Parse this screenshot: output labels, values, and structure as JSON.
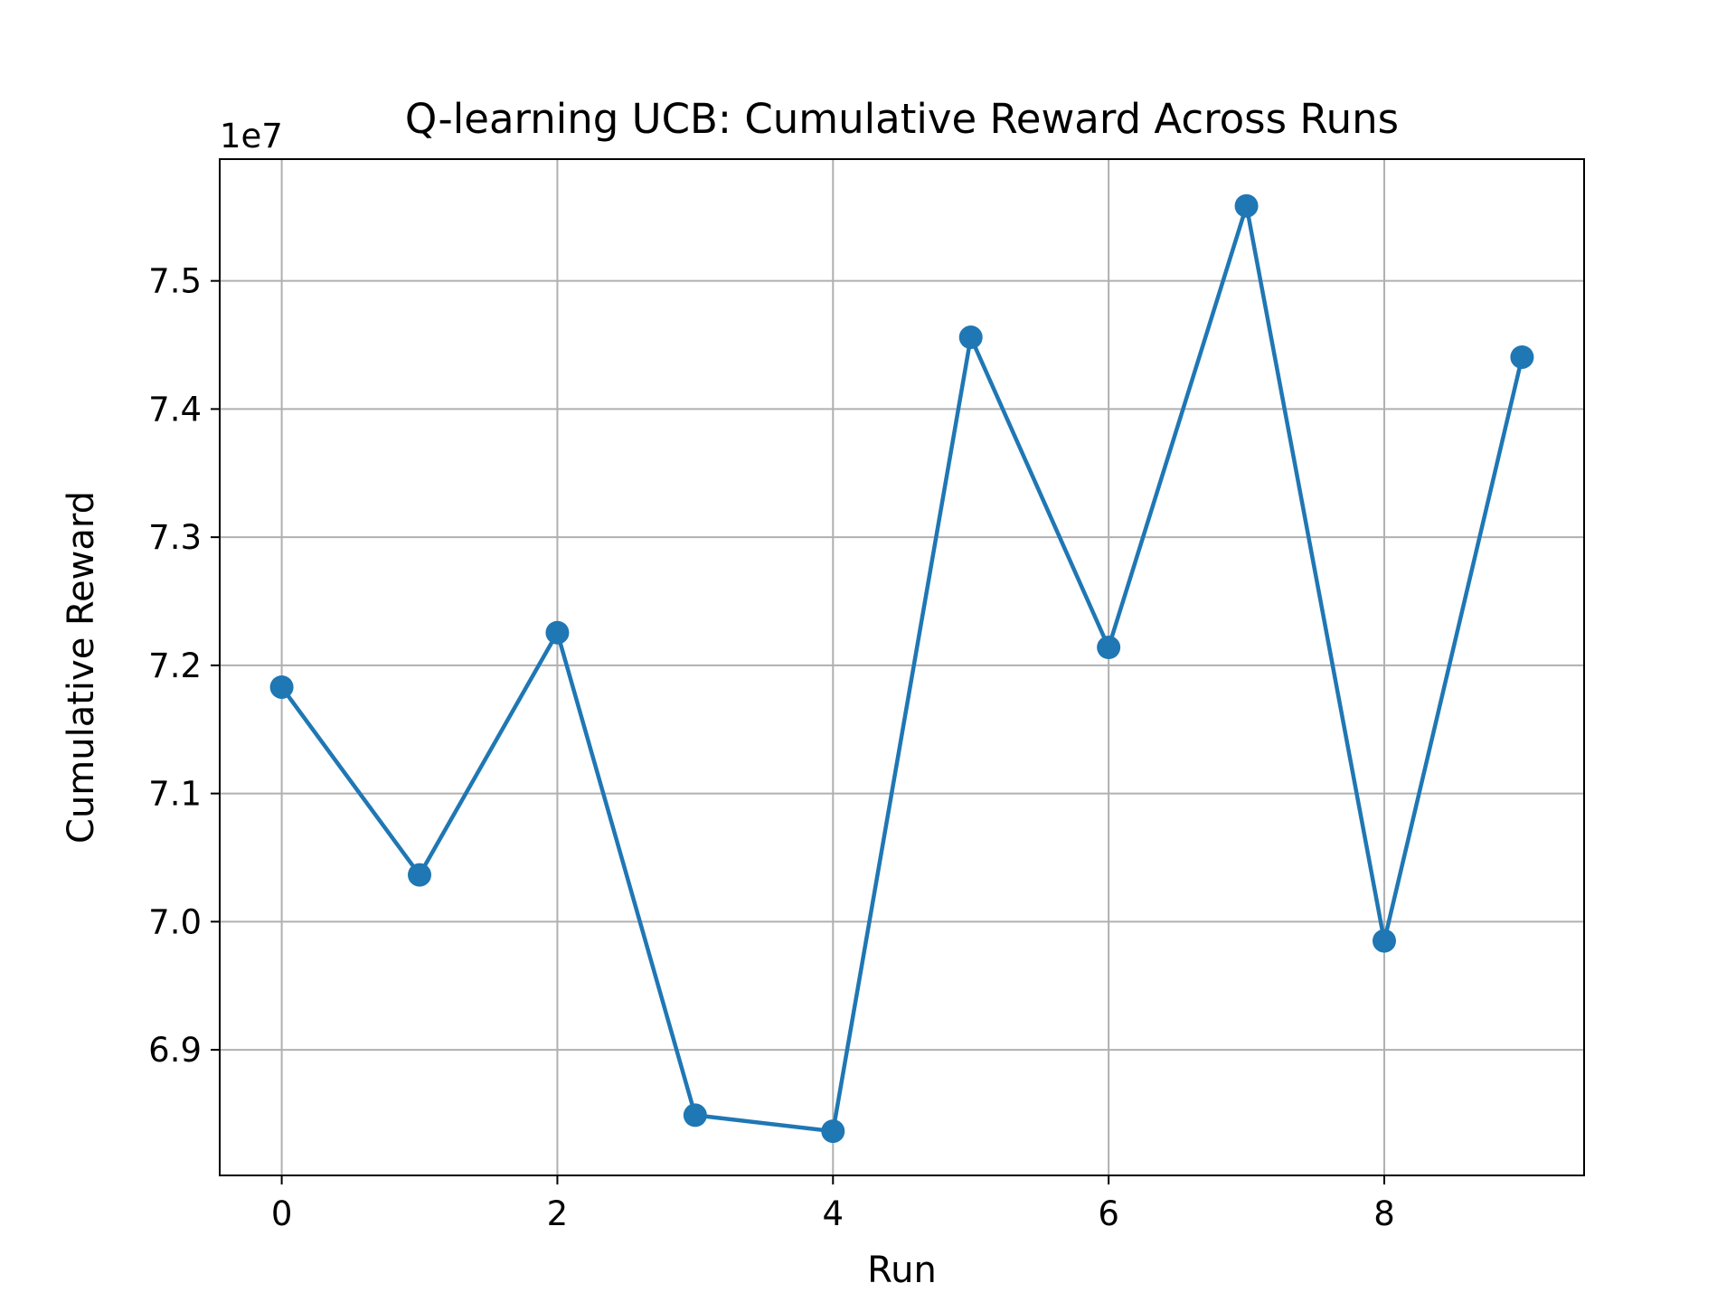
{
  "chart_data": {
    "type": "line",
    "title": "Q-learning UCB: Cumulative Reward Across Runs",
    "xlabel": "Run",
    "ylabel": "Cumulative Reward",
    "y_offset_label": "1e7",
    "x": [
      0,
      1,
      2,
      3,
      4,
      5,
      6,
      7,
      8,
      9
    ],
    "series": [
      {
        "values": [
          71830000,
          70365000,
          72255000,
          68490000,
          68365000,
          74560000,
          72140000,
          75585000,
          69850000,
          74405000
        ],
        "color": "#1f77b4",
        "marker": "circle"
      }
    ],
    "xticks": [
      0,
      2,
      4,
      6,
      8
    ],
    "xtick_labels": [
      "0",
      "2",
      "4",
      "6",
      "8"
    ],
    "yticks": [
      69000000,
      70000000,
      71000000,
      72000000,
      73000000,
      74000000,
      75000000
    ],
    "ytick_labels": [
      "6.9",
      "7.0",
      "7.1",
      "7.2",
      "7.3",
      "7.4",
      "7.5"
    ],
    "xlim": [
      -0.45,
      9.45
    ],
    "ylim": [
      68020000,
      75950000
    ],
    "grid": true,
    "colors": {
      "line": "#1f77b4",
      "grid": "#b0b0b0",
      "axes": "#000000"
    }
  }
}
